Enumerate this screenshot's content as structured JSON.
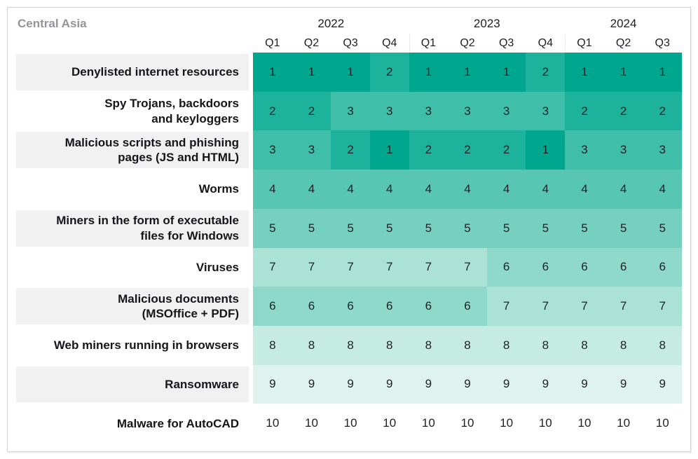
{
  "table": {
    "region_label": "Central Asia",
    "year_groups": [
      {
        "year": "2022",
        "quarters": [
          "Q1",
          "Q2",
          "Q3",
          "Q4"
        ]
      },
      {
        "year": "2023",
        "quarters": [
          "Q1",
          "Q2",
          "Q3",
          "Q4"
        ]
      },
      {
        "year": "2024",
        "quarters": [
          "Q1",
          "Q2",
          "Q3"
        ]
      }
    ]
  },
  "chart_data": {
    "type": "heatmap",
    "title": "Central Asia",
    "value_meaning": "rank of malware category per quarter (1 = top rank, darkest)",
    "columns": [
      "2022 Q1",
      "2022 Q2",
      "2022 Q3",
      "2022 Q4",
      "2023 Q1",
      "2023 Q2",
      "2023 Q3",
      "2023 Q4",
      "2024 Q1",
      "2024 Q2",
      "2024 Q3"
    ],
    "rows": [
      {
        "label": "Denylisted internet resources",
        "lines": [
          "Denylisted internet resources"
        ],
        "values": [
          1,
          1,
          1,
          2,
          1,
          1,
          1,
          2,
          1,
          1,
          1
        ]
      },
      {
        "label": "Spy Trojans, backdoors and keyloggers",
        "lines": [
          "Spy Trojans, backdoors",
          "and keyloggers"
        ],
        "values": [
          2,
          2,
          3,
          3,
          3,
          3,
          3,
          3,
          2,
          2,
          2
        ]
      },
      {
        "label": "Malicious scripts and phishing pages (JS and HTML)",
        "lines": [
          "Malicious scripts and phishing",
          "pages (JS and HTML)"
        ],
        "values": [
          3,
          3,
          2,
          1,
          2,
          2,
          2,
          1,
          3,
          3,
          3
        ]
      },
      {
        "label": "Worms",
        "lines": [
          "Worms"
        ],
        "values": [
          4,
          4,
          4,
          4,
          4,
          4,
          4,
          4,
          4,
          4,
          4
        ]
      },
      {
        "label": "Miners in the form of executable files for Windows",
        "lines": [
          "Miners in the form of executable",
          "files for Windows"
        ],
        "values": [
          5,
          5,
          5,
          5,
          5,
          5,
          5,
          5,
          5,
          5,
          5
        ]
      },
      {
        "label": "Viruses",
        "lines": [
          "Viruses"
        ],
        "values": [
          7,
          7,
          7,
          7,
          7,
          7,
          6,
          6,
          6,
          6,
          6
        ]
      },
      {
        "label": "Malicious documents (MSOffice + PDF)",
        "lines": [
          "Malicious documents",
          "(MSOffice + PDF)"
        ],
        "values": [
          6,
          6,
          6,
          6,
          6,
          6,
          7,
          7,
          7,
          7,
          7
        ]
      },
      {
        "label": "Web miners running in browsers",
        "lines": [
          "Web miners running in browsers"
        ],
        "values": [
          8,
          8,
          8,
          8,
          8,
          8,
          8,
          8,
          8,
          8,
          8
        ]
      },
      {
        "label": "Ransomware",
        "lines": [
          "Ransomware"
        ],
        "values": [
          9,
          9,
          9,
          9,
          9,
          9,
          9,
          9,
          9,
          9,
          9
        ]
      },
      {
        "label": "Malware for AutoCAD",
        "lines": [
          "Malware for AutoCAD"
        ],
        "values": [
          10,
          10,
          10,
          10,
          10,
          10,
          10,
          10,
          10,
          10,
          10
        ]
      }
    ],
    "color_scale": {
      "1": "#00a78e",
      "2": "#1db29b",
      "3": "#3fbea9",
      "4": "#57c6b3",
      "5": "#76d0bf",
      "6": "#8fd9ca",
      "7": "#aae2d6",
      "8": "#c6ece2",
      "9": "#def3ed",
      "10": "#ffffff"
    },
    "layout": {
      "label_row_alt_background": "#f1f1f1",
      "frame_border": "#d2d2d2",
      "title_color": "#959599"
    }
  }
}
